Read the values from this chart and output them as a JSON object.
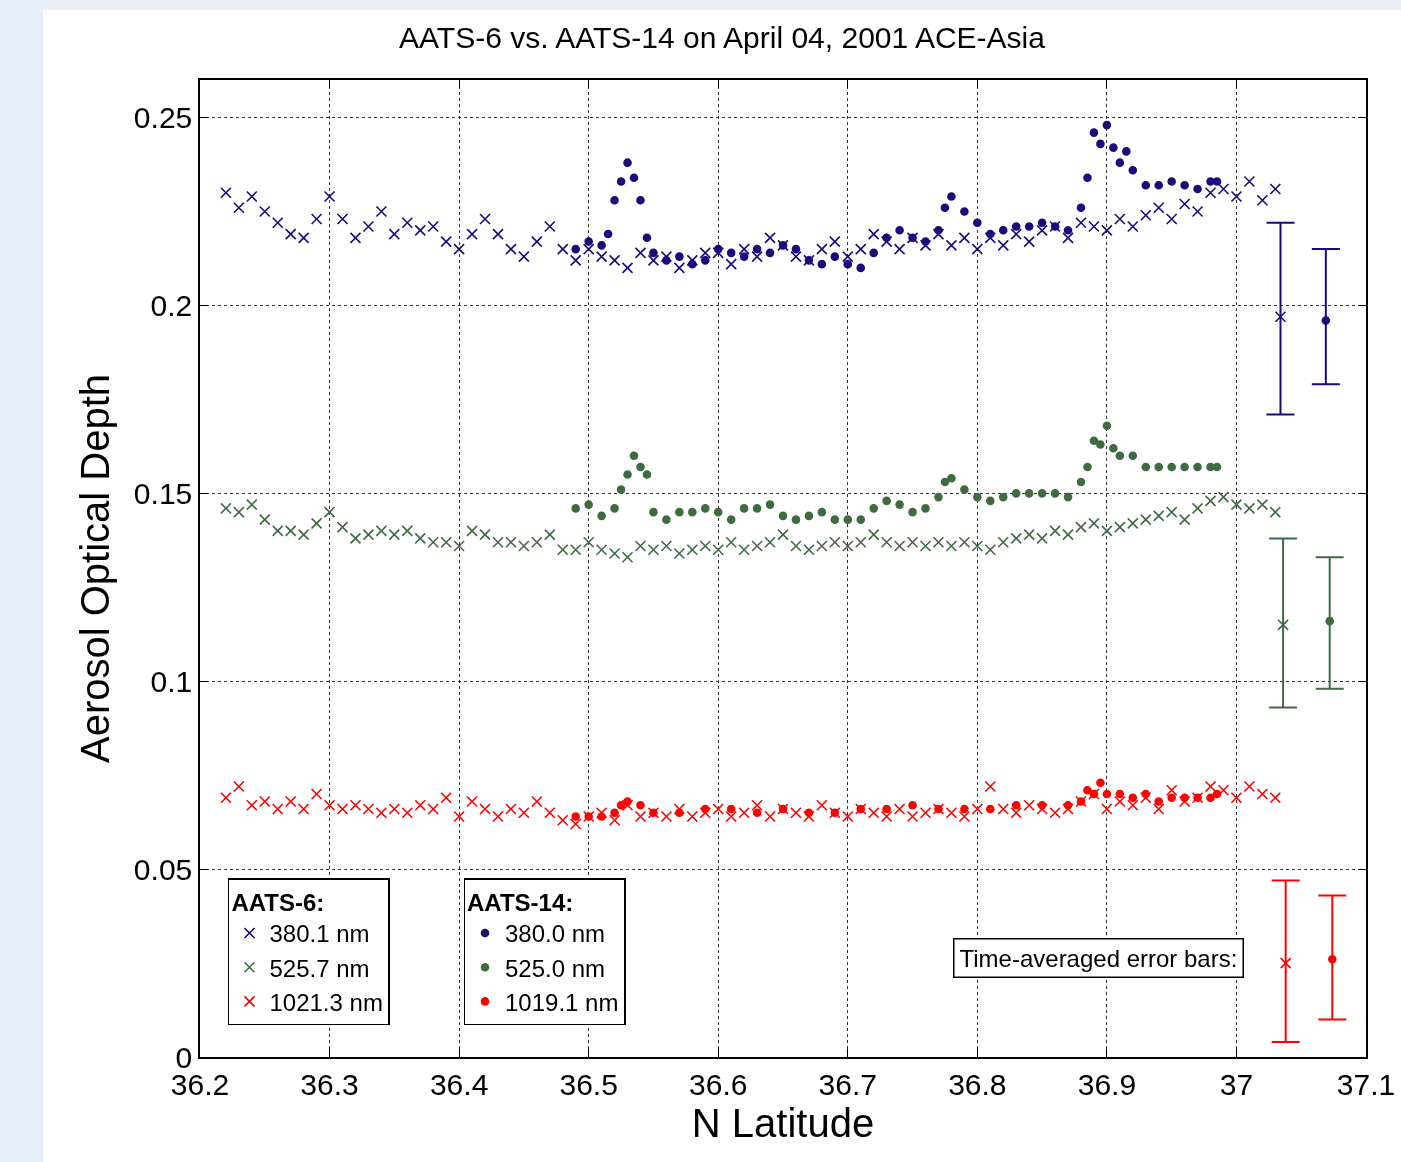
{
  "chart_data": {
    "type": "scatter",
    "title": "AATS-6 vs. AATS-14 on April 04, 2001 ACE-Asia",
    "xlabel": "N Latitude",
    "ylabel": "Aerosol Optical Depth",
    "xlim": [
      36.2,
      37.1
    ],
    "xticks": [
      36.2,
      36.3,
      36.4,
      36.5,
      36.6,
      36.7,
      36.8,
      36.9,
      37,
      37.1
    ],
    "ylim": [
      0,
      0.26
    ],
    "yticks": [
      0,
      0.05,
      0.1,
      0.15,
      0.2,
      0.25
    ],
    "grid": true,
    "legend": "bottom left",
    "legend_title": [
      "AATS-6:",
      "AATS-14:"
    ],
    "annotations": [
      "Time-averaged error bars:"
    ],
    "x": [
      36.22,
      36.23,
      36.24,
      36.25,
      36.26,
      36.27,
      36.28,
      36.29,
      36.3,
      36.31,
      36.32,
      36.33,
      36.34,
      36.35,
      36.36,
      36.37,
      36.38,
      36.39,
      36.4,
      36.41,
      36.42,
      36.43,
      36.44,
      36.45,
      36.46,
      36.47,
      36.48,
      36.49,
      36.5,
      36.51,
      36.52,
      36.53,
      36.54,
      36.55,
      36.56,
      36.57,
      36.58,
      36.59,
      36.6,
      36.61,
      36.62,
      36.63,
      36.64,
      36.65,
      36.66,
      36.67,
      36.68,
      36.69,
      36.7,
      36.71,
      36.72,
      36.73,
      36.74,
      36.75,
      36.76,
      36.77,
      36.78,
      36.79,
      36.8,
      36.81,
      36.82,
      36.83,
      36.84,
      36.85,
      36.86,
      36.87,
      36.88,
      36.89,
      36.9,
      36.91,
      36.92,
      36.93,
      36.94,
      36.95,
      36.96,
      36.97,
      36.98,
      36.99,
      37,
      37.01,
      37.02,
      37.03
    ],
    "series": [
      {
        "name": "380.1 nm",
        "color": "#1b0a7a",
        "marker": "cross",
        "values": [
          0.23,
          0.226,
          0.229,
          0.225,
          0.222,
          0.219,
          0.218,
          0.223,
          0.229,
          0.223,
          0.218,
          0.221,
          0.225,
          0.219,
          0.222,
          0.22,
          0.221,
          0.217,
          0.215,
          0.219,
          0.223,
          0.219,
          0.215,
          0.213,
          0.217,
          0.221,
          0.215,
          0.212,
          0.215,
          0.213,
          0.212,
          0.21,
          0.214,
          0.212,
          0.213,
          0.21,
          0.212,
          0.214,
          0.214,
          0.211,
          0.215,
          0.213,
          0.218,
          0.216,
          0.213,
          0.212,
          0.215,
          0.217,
          0.213,
          0.215,
          0.219,
          0.217,
          0.215,
          0.218,
          0.216,
          0.219,
          0.216,
          0.218,
          0.215,
          0.218,
          0.216,
          0.219,
          0.217,
          0.22,
          0.221,
          0.218,
          0.222,
          0.221,
          0.22,
          0.223,
          0.221,
          0.224,
          0.226,
          0.223,
          0.227,
          0.225,
          0.23,
          0.231,
          0.229,
          0.233,
          0.228,
          0.231
        ]
      },
      {
        "name": "525.7 nm",
        "color": "#3e6b40",
        "marker": "cross",
        "values": [
          0.146,
          0.145,
          0.147,
          0.143,
          0.14,
          0.14,
          0.139,
          0.142,
          0.145,
          0.141,
          0.138,
          0.139,
          0.14,
          0.139,
          0.14,
          0.138,
          0.137,
          0.137,
          0.136,
          0.14,
          0.139,
          0.137,
          0.137,
          0.136,
          0.137,
          0.139,
          0.135,
          0.135,
          0.137,
          0.135,
          0.134,
          0.133,
          0.136,
          0.135,
          0.136,
          0.134,
          0.135,
          0.136,
          0.135,
          0.137,
          0.135,
          0.136,
          0.137,
          0.139,
          0.136,
          0.135,
          0.136,
          0.137,
          0.136,
          0.137,
          0.139,
          0.137,
          0.136,
          0.137,
          0.136,
          0.137,
          0.136,
          0.137,
          0.136,
          0.135,
          0.137,
          0.138,
          0.139,
          0.138,
          0.14,
          0.139,
          0.141,
          0.142,
          0.14,
          0.141,
          0.142,
          0.143,
          0.144,
          0.145,
          0.143,
          0.146,
          0.148,
          0.149,
          0.147,
          0.146,
          0.147,
          0.145
        ]
      },
      {
        "name": "1021.3 nm",
        "color": "#ff0000",
        "marker": "cross",
        "values": [
          0.069,
          0.072,
          0.067,
          0.068,
          0.066,
          0.068,
          0.066,
          0.07,
          0.067,
          0.066,
          0.067,
          0.066,
          0.065,
          0.066,
          0.065,
          0.067,
          0.066,
          0.069,
          0.064,
          0.068,
          0.066,
          0.064,
          0.066,
          0.065,
          0.068,
          0.065,
          0.063,
          0.062,
          0.064,
          0.065,
          0.063,
          0.067,
          0.064,
          0.065,
          0.064,
          0.066,
          0.064,
          0.065,
          0.066,
          0.064,
          0.065,
          0.067,
          0.064,
          0.066,
          0.065,
          0.064,
          0.067,
          0.065,
          0.064,
          0.066,
          0.065,
          0.064,
          0.066,
          0.064,
          0.065,
          0.066,
          0.065,
          0.064,
          0.066,
          0.072,
          0.066,
          0.065,
          0.067,
          0.066,
          0.065,
          0.066,
          0.068,
          0.07,
          0.066,
          0.068,
          0.067,
          0.069,
          0.066,
          0.071,
          0.068,
          0.069,
          0.072,
          0.071,
          0.069,
          0.072,
          0.07,
          0.069
        ]
      },
      {
        "name": "380.0 nm",
        "color": "#1b0a7a",
        "marker": "circle",
        "x": [
          36.49,
          36.5,
          36.51,
          36.515,
          36.52,
          36.525,
          36.53,
          36.535,
          36.54,
          36.545,
          36.55,
          36.56,
          36.57,
          36.58,
          36.59,
          36.6,
          36.61,
          36.62,
          36.63,
          36.64,
          36.65,
          36.66,
          36.67,
          36.68,
          36.69,
          36.7,
          36.71,
          36.72,
          36.73,
          36.74,
          36.75,
          36.76,
          36.77,
          36.775,
          36.78,
          36.79,
          36.8,
          36.81,
          36.82,
          36.83,
          36.84,
          36.85,
          36.86,
          36.87,
          36.88,
          36.885,
          36.89,
          36.895,
          36.9,
          36.905,
          36.91,
          36.915,
          36.92,
          36.93,
          36.94,
          36.95,
          36.96,
          36.97,
          36.98,
          36.985
        ],
        "values": [
          0.215,
          0.217,
          0.216,
          0.219,
          0.228,
          0.233,
          0.238,
          0.234,
          0.228,
          0.218,
          0.214,
          0.212,
          0.213,
          0.211,
          0.212,
          0.215,
          0.214,
          0.213,
          0.215,
          0.214,
          0.216,
          0.215,
          0.212,
          0.211,
          0.213,
          0.211,
          0.21,
          0.214,
          0.218,
          0.22,
          0.218,
          0.217,
          0.22,
          0.226,
          0.229,
          0.225,
          0.222,
          0.219,
          0.22,
          0.221,
          0.221,
          0.222,
          0.221,
          0.22,
          0.226,
          0.234,
          0.246,
          0.243,
          0.248,
          0.242,
          0.238,
          0.241,
          0.236,
          0.232,
          0.232,
          0.233,
          0.232,
          0.231,
          0.233,
          0.233
        ]
      },
      {
        "name": "525.0 nm",
        "color": "#3e6b40",
        "marker": "circle",
        "x": [
          36.49,
          36.5,
          36.51,
          36.52,
          36.525,
          36.53,
          36.535,
          36.54,
          36.545,
          36.55,
          36.56,
          36.57,
          36.58,
          36.59,
          36.6,
          36.61,
          36.62,
          36.63,
          36.64,
          36.65,
          36.66,
          36.67,
          36.68,
          36.69,
          36.7,
          36.71,
          36.72,
          36.73,
          36.74,
          36.75,
          36.76,
          36.77,
          36.775,
          36.78,
          36.79,
          36.8,
          36.81,
          36.82,
          36.83,
          36.84,
          36.85,
          36.86,
          36.87,
          36.88,
          36.885,
          36.89,
          36.895,
          36.9,
          36.905,
          36.91,
          36.92,
          36.93,
          36.94,
          36.95,
          36.96,
          36.97,
          36.98,
          36.985
        ],
        "values": [
          0.146,
          0.147,
          0.144,
          0.146,
          0.151,
          0.155,
          0.16,
          0.157,
          0.155,
          0.145,
          0.143,
          0.145,
          0.145,
          0.146,
          0.145,
          0.143,
          0.146,
          0.146,
          0.147,
          0.144,
          0.143,
          0.144,
          0.145,
          0.143,
          0.143,
          0.143,
          0.146,
          0.148,
          0.147,
          0.145,
          0.146,
          0.149,
          0.153,
          0.154,
          0.151,
          0.149,
          0.148,
          0.149,
          0.15,
          0.15,
          0.15,
          0.15,
          0.149,
          0.153,
          0.157,
          0.164,
          0.163,
          0.168,
          0.162,
          0.16,
          0.16,
          0.157,
          0.157,
          0.157,
          0.157,
          0.157,
          0.157,
          0.157
        ]
      },
      {
        "name": "1019.1 nm",
        "color": "#ff0000",
        "marker": "circle",
        "x": [
          36.49,
          36.5,
          36.51,
          36.52,
          36.525,
          36.53,
          36.54,
          36.55,
          36.57,
          36.59,
          36.61,
          36.63,
          36.65,
          36.67,
          36.69,
          36.71,
          36.73,
          36.75,
          36.77,
          36.79,
          36.81,
          36.83,
          36.85,
          36.87,
          36.88,
          36.885,
          36.89,
          36.895,
          36.9,
          36.91,
          36.92,
          36.93,
          36.94,
          36.95,
          36.96,
          36.97,
          36.98,
          36.985
        ],
        "values": [
          0.064,
          0.064,
          0.064,
          0.065,
          0.067,
          0.068,
          0.067,
          0.065,
          0.065,
          0.066,
          0.066,
          0.065,
          0.066,
          0.065,
          0.065,
          0.066,
          0.066,
          0.067,
          0.066,
          0.066,
          0.066,
          0.067,
          0.067,
          0.067,
          0.068,
          0.071,
          0.07,
          0.073,
          0.07,
          0.07,
          0.069,
          0.07,
          0.068,
          0.069,
          0.069,
          0.069,
          0.069,
          0.07
        ]
      },
      {
        "color": "#1b0a7a",
        "marker": "cross",
        "x": [
          37.034
        ],
        "values": [
          0.197
        ],
        "errors": [
          [
            0.171,
            0.222
          ]
        ]
      },
      {
        "color": "#1b0a7a",
        "marker": "circle",
        "x": [
          37.069
        ],
        "values": [
          0.196
        ],
        "errors": [
          [
            0.179,
            0.215
          ]
        ]
      },
      {
        "color": "#3e6b40",
        "marker": "cross",
        "x": [
          37.036
        ],
        "values": [
          0.115
        ],
        "errors": [
          [
            0.093,
            0.138
          ]
        ]
      },
      {
        "color": "#3e6b40",
        "marker": "circle",
        "x": [
          37.072
        ],
        "values": [
          0.116
        ],
        "errors": [
          [
            0.098,
            0.133
          ]
        ]
      },
      {
        "color": "#ff0000",
        "marker": "cross",
        "x": [
          37.038
        ],
        "values": [
          0.025
        ],
        "errors": [
          [
            0.004,
            0.047
          ]
        ]
      },
      {
        "color": "#ff0000",
        "marker": "circle",
        "x": [
          37.074
        ],
        "values": [
          0.026
        ],
        "errors": [
          [
            0.01,
            0.043
          ]
        ]
      }
    ]
  }
}
